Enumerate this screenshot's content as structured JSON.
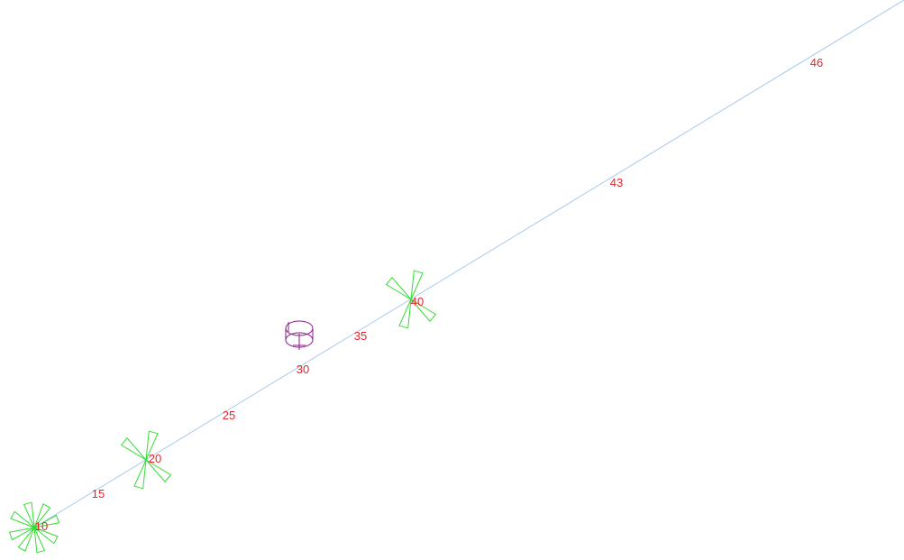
{
  "colors": {
    "pipe": "#a9c9ec",
    "node_label": "#e8232a",
    "anchor_support": "#33dd33",
    "spring_hanger": "#8b1a8b"
  },
  "pipe": {
    "nodes": [
      {
        "label": "10",
        "support": "anchor"
      },
      {
        "label": "15",
        "support": "none"
      },
      {
        "label": "20",
        "support": "guide"
      },
      {
        "label": "25",
        "support": "none"
      },
      {
        "label": "30",
        "support": "none"
      },
      {
        "label": "35",
        "support": "none"
      },
      {
        "label": "40",
        "support": "guide"
      },
      {
        "label": "43",
        "support": "none"
      },
      {
        "label": "46",
        "support": "none"
      }
    ],
    "hangers": [
      {
        "near_node": "30",
        "type": "spring-can"
      }
    ]
  }
}
